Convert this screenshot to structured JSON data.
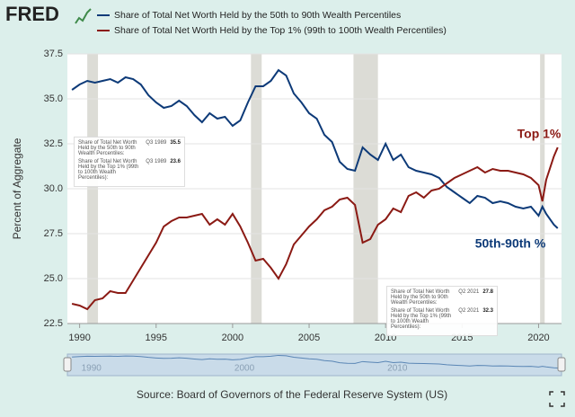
{
  "logo": "FRED",
  "chart_data": {
    "type": "line",
    "y_label": "Percent of Aggregate",
    "source": "Source: Board of Governors of the Federal Reserve System (US)",
    "x": [
      1989.5,
      1990,
      1990.5,
      1991,
      1991.5,
      1992,
      1992.5,
      1993,
      1993.5,
      1994,
      1994.5,
      1995,
      1995.5,
      1996,
      1996.5,
      1997,
      1997.5,
      1998,
      1998.5,
      1999,
      1999.5,
      2000,
      2000.5,
      2001,
      2001.5,
      2002,
      2002.5,
      2003,
      2003.5,
      2004,
      2004.5,
      2005,
      2005.5,
      2006,
      2006.5,
      2007,
      2007.5,
      2008,
      2008.5,
      2009,
      2009.5,
      2010,
      2010.5,
      2011,
      2011.5,
      2012,
      2012.5,
      2013,
      2013.5,
      2014,
      2014.5,
      2015,
      2015.5,
      2016,
      2016.5,
      2017,
      2017.5,
      2018,
      2018.5,
      2019,
      2019.5,
      2020,
      2020.25,
      2020.5,
      2021,
      2021.25
    ],
    "series": [
      {
        "name": "Share of Total Net Worth Held by the 50th to 90th Wealth Percentiles",
        "color": "#0d3a78",
        "values": [
          35.5,
          35.8,
          36.0,
          35.9,
          36.0,
          36.1,
          35.9,
          36.2,
          36.1,
          35.8,
          35.2,
          34.8,
          34.5,
          34.6,
          34.9,
          34.6,
          34.1,
          33.7,
          34.2,
          33.9,
          34.0,
          33.5,
          33.8,
          34.8,
          35.7,
          35.7,
          36.0,
          36.6,
          36.3,
          35.3,
          34.8,
          34.2,
          33.9,
          33.0,
          32.6,
          31.5,
          31.1,
          31.0,
          32.3,
          31.9,
          31.6,
          32.5,
          31.6,
          31.9,
          31.2,
          31.0,
          30.9,
          30.8,
          30.6,
          30.1,
          29.8,
          29.5,
          29.2,
          29.6,
          29.5,
          29.2,
          29.3,
          29.2,
          29.0,
          28.9,
          29.0,
          28.5,
          29.0,
          28.6,
          28.0,
          27.8
        ]
      },
      {
        "name": "Share of Total Net Worth Held by the Top 1% (99th to 100th Wealth Percentiles)",
        "color": "#8b1a14",
        "values": [
          23.6,
          23.5,
          23.3,
          23.8,
          23.9,
          24.3,
          24.2,
          24.2,
          24.9,
          25.6,
          26.3,
          27.0,
          27.9,
          28.2,
          28.4,
          28.4,
          28.5,
          28.6,
          28.0,
          28.3,
          28.0,
          28.6,
          27.9,
          27.0,
          26.0,
          26.1,
          25.6,
          25.0,
          25.8,
          26.9,
          27.4,
          27.9,
          28.3,
          28.8,
          29.0,
          29.4,
          29.5,
          29.1,
          27.0,
          27.2,
          28.0,
          28.3,
          28.9,
          28.7,
          29.6,
          29.8,
          29.5,
          29.9,
          30.0,
          30.3,
          30.6,
          30.8,
          31.0,
          31.2,
          30.9,
          31.1,
          31.0,
          31.0,
          30.9,
          30.8,
          30.6,
          30.2,
          29.3,
          30.5,
          31.8,
          32.3
        ]
      }
    ],
    "recessions": [
      [
        1990.5,
        1991.2
      ],
      [
        2001.2,
        2001.9
      ],
      [
        2007.9,
        2009.5
      ],
      [
        2020.1,
        2020.4
      ]
    ],
    "xlim": [
      1989.2,
      2021.5
    ],
    "xticks": [
      1990,
      1995,
      2000,
      2005,
      2010,
      2015,
      2020
    ],
    "ylim": [
      22.5,
      37.5
    ],
    "yticks": [
      22.5,
      {
        "value": 25,
        "label": "25.0"
      },
      27.5,
      {
        "value": 30,
        "label": "30.0"
      },
      32.5,
      {
        "value": 35,
        "label": "35.0"
      },
      37.5
    ],
    "grid": true,
    "annotations": [
      {
        "text": "Top 1%",
        "color": "#8b1a14"
      },
      {
        "text": "50th-90th %",
        "color": "#0d3a78"
      }
    ],
    "tooltips": [
      {
        "date": "Q3 1989",
        "entries": [
          {
            "label": "Share of Total Net Worth Held by the 50th to 90th Wealth Percentiles:",
            "value": 35.5
          },
          {
            "label": "Share of Total Net Worth Held by the Top 1% (99th to 100th Wealth Percentiles):",
            "value": 23.6
          }
        ]
      },
      {
        "date": "Q2 2021",
        "entries": [
          {
            "label": "Share of Total Net Worth Held by the 50th to 90th Wealth Percentiles:",
            "value": 27.8
          },
          {
            "label": "Share of Total Net Worth Held by the Top 1% (99th to 100th Wealth Percentiles):",
            "value": 32.3
          }
        ]
      }
    ],
    "navigator": {
      "ticks": [
        1990,
        2000,
        2010
      ]
    }
  }
}
